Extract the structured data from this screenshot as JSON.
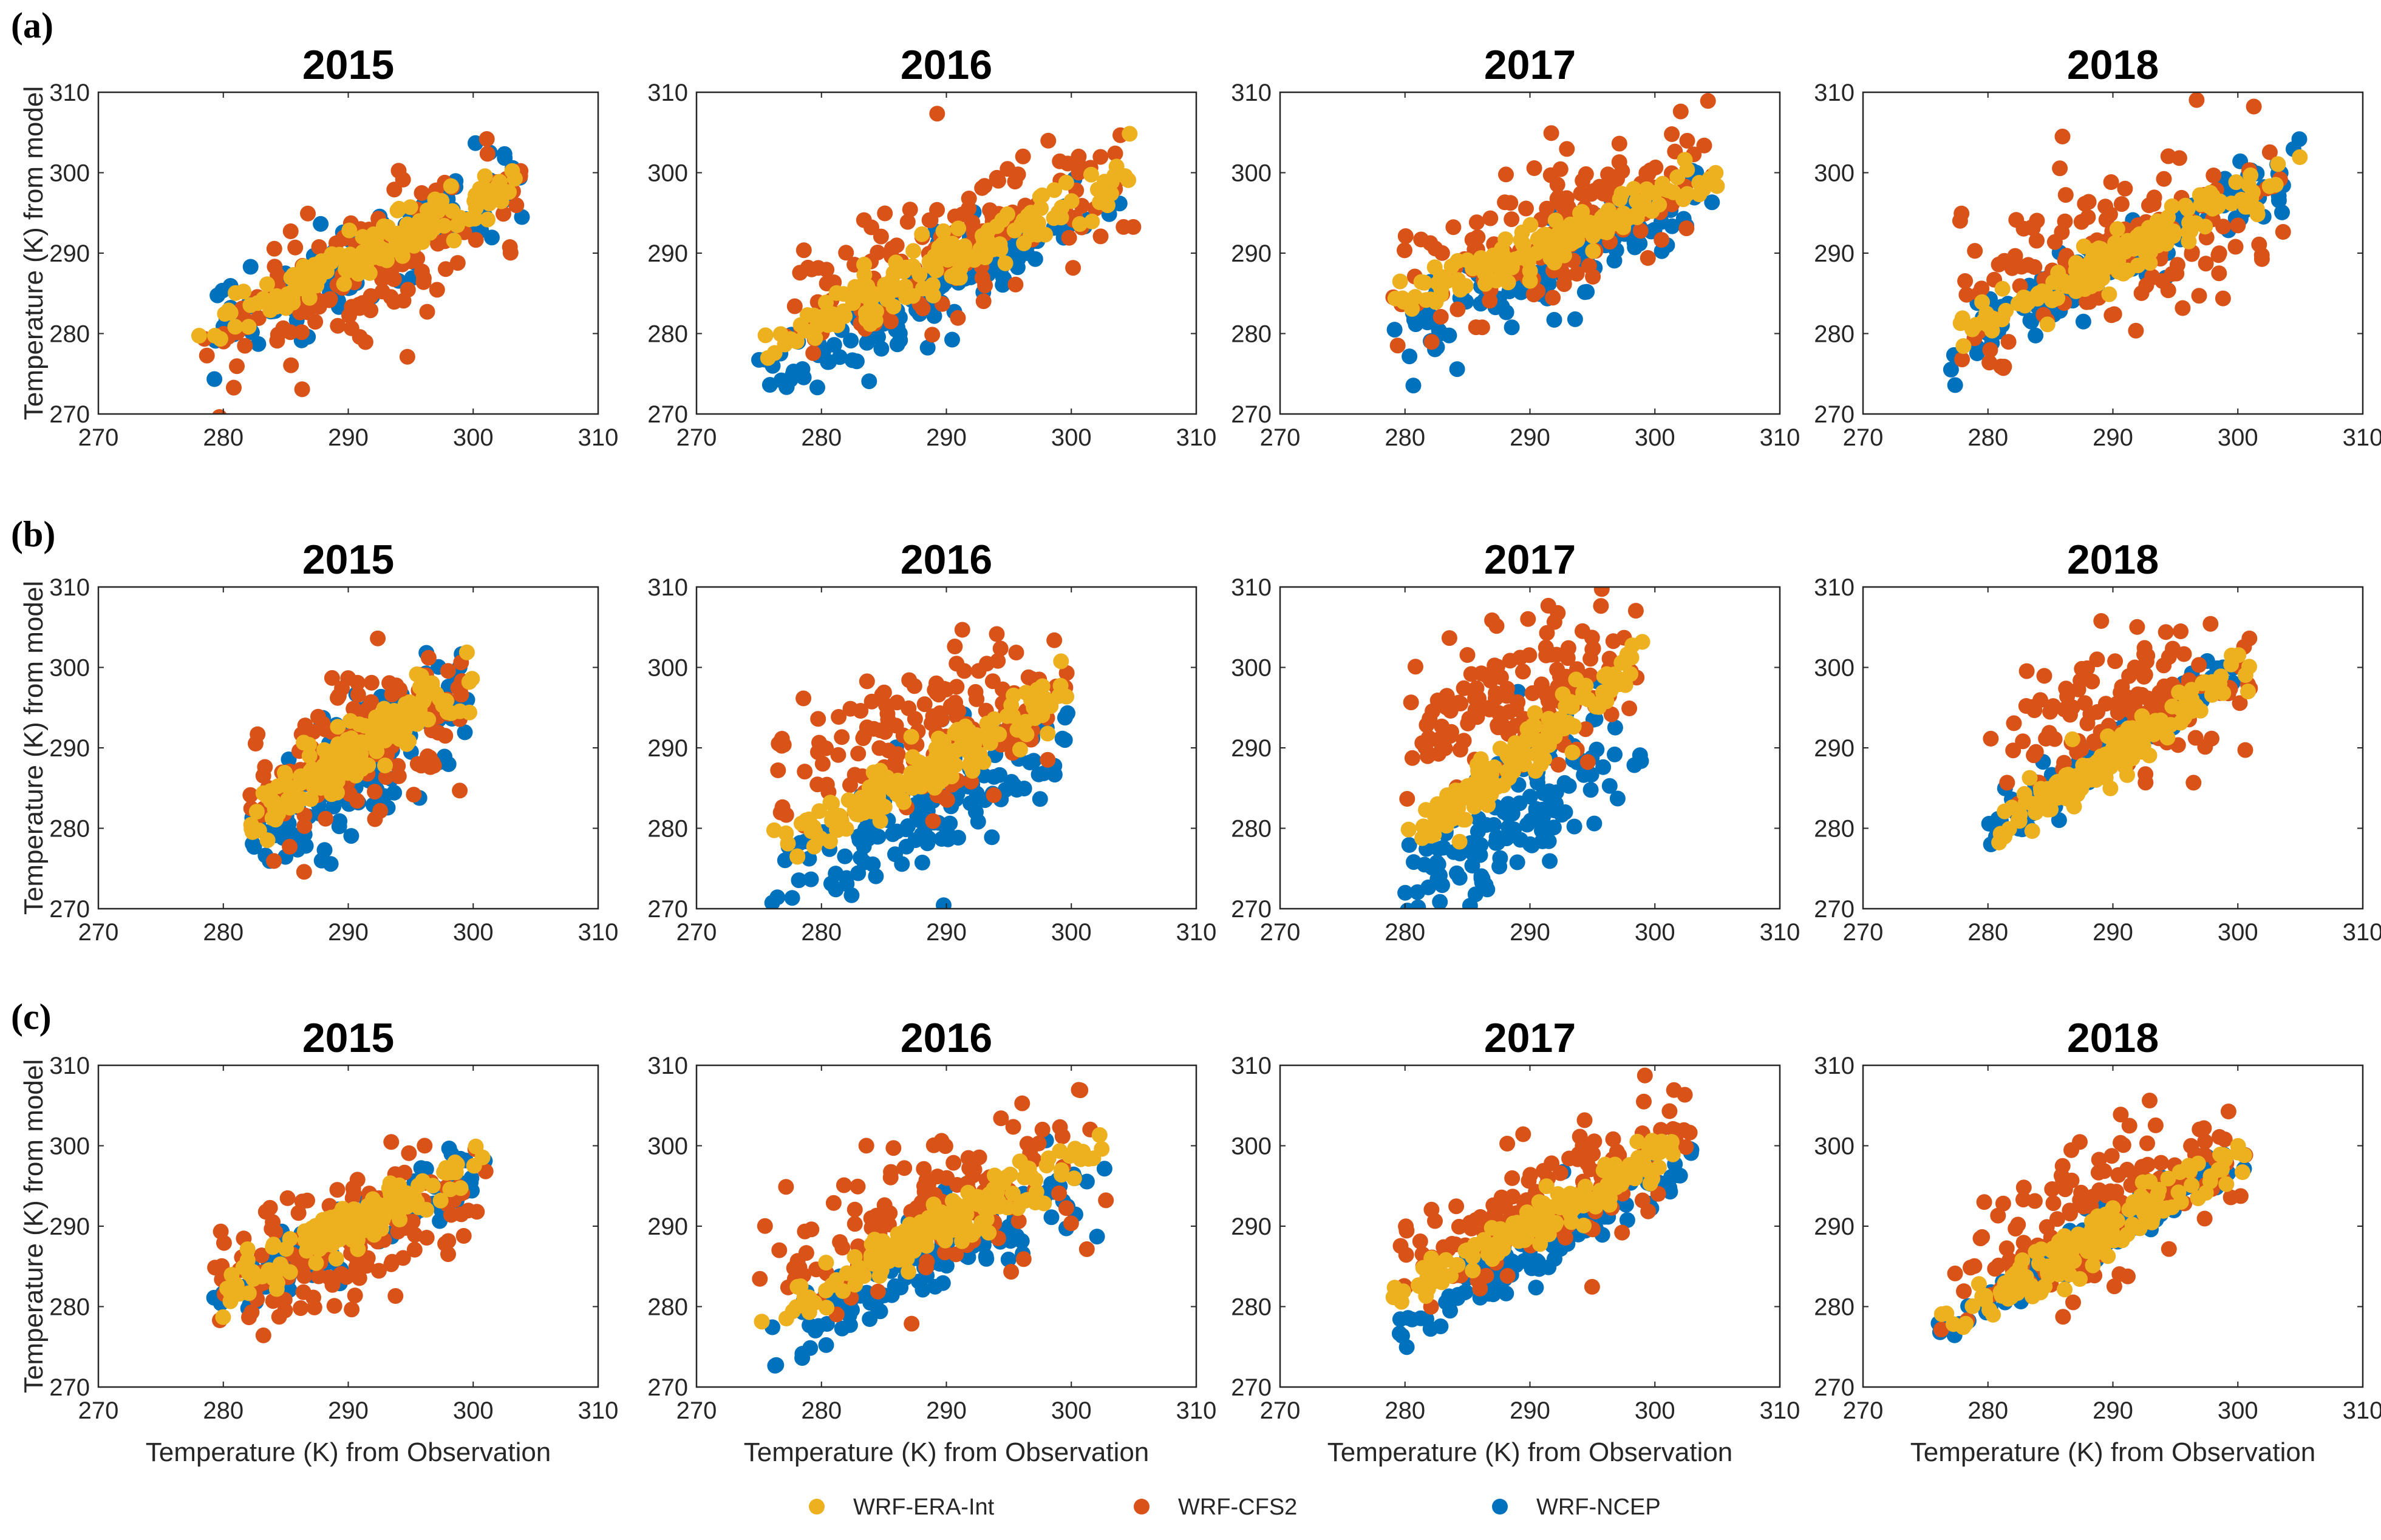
{
  "figure": {
    "row_labels": [
      "(a)",
      "(b)",
      "(c)"
    ],
    "x_axis_label": "Temperature (K) from Observation",
    "y_axis_label": "Temperature (K) from model"
  },
  "legend": [
    {
      "name": "WRF-ERA-Int",
      "color": "#EDB120"
    },
    {
      "name": "WRF-CFS2",
      "color": "#D95319"
    },
    {
      "name": "WRF-NCEP",
      "color": "#0072BD"
    }
  ],
  "chart_data": [
    {
      "type": "scatter",
      "row": "(a)",
      "title": "2015",
      "xlim": [
        270,
        310
      ],
      "ylim": [
        270,
        310
      ],
      "xticks": [
        270,
        280,
        290,
        300,
        310
      ],
      "yticks": [
        270,
        280,
        290,
        300,
        310
      ],
      "obs_range": [
        278,
        304
      ],
      "series": [
        {
          "name": "WRF-ERA-Int",
          "bias": -1,
          "slope": 0.75,
          "spread": 1.5
        },
        {
          "name": "WRF-CFS2",
          "bias": -3,
          "slope": 0.7,
          "spread": 4.5
        },
        {
          "name": "WRF-NCEP",
          "bias": -2,
          "slope": 0.75,
          "spread": 2.5
        }
      ]
    },
    {
      "type": "scatter",
      "row": "(a)",
      "title": "2016",
      "xlim": [
        270,
        310
      ],
      "ylim": [
        270,
        310
      ],
      "xticks": [
        270,
        280,
        290,
        300,
        310
      ],
      "yticks": [
        270,
        280,
        290,
        300,
        310
      ],
      "obs_range": [
        275,
        305
      ],
      "series": [
        {
          "name": "WRF-ERA-Int",
          "bias": -1,
          "slope": 0.75,
          "spread": 1.8
        },
        {
          "name": "WRF-CFS2",
          "bias": 0,
          "slope": 0.6,
          "spread": 4.5
        },
        {
          "name": "WRF-NCEP",
          "bias": -4,
          "slope": 0.8,
          "spread": 2.5
        }
      ]
    },
    {
      "type": "scatter",
      "row": "(a)",
      "title": "2017",
      "xlim": [
        270,
        310
      ],
      "ylim": [
        270,
        310
      ],
      "xticks": [
        270,
        280,
        290,
        300,
        310
      ],
      "yticks": [
        270,
        280,
        290,
        300,
        310
      ],
      "obs_range": [
        279,
        305
      ],
      "series": [
        {
          "name": "WRF-ERA-Int",
          "bias": -0.5,
          "slope": 0.62,
          "spread": 1.2
        },
        {
          "name": "WRF-CFS2",
          "bias": 1,
          "slope": 0.6,
          "spread": 3.8
        },
        {
          "name": "WRF-NCEP",
          "bias": -3,
          "slope": 0.78,
          "spread": 2.5
        }
      ]
    },
    {
      "type": "scatter",
      "row": "(a)",
      "title": "2018",
      "xlim": [
        270,
        310
      ],
      "ylim": [
        270,
        310
      ],
      "xticks": [
        270,
        280,
        290,
        300,
        310
      ],
      "yticks": [
        270,
        280,
        290,
        300,
        310
      ],
      "obs_range": [
        277,
        305
      ],
      "series": [
        {
          "name": "WRF-ERA-Int",
          "bias": -1,
          "slope": 0.75,
          "spread": 1.5
        },
        {
          "name": "WRF-CFS2",
          "bias": 0,
          "slope": 0.5,
          "spread": 5.5
        },
        {
          "name": "WRF-NCEP",
          "bias": -1.5,
          "slope": 0.8,
          "spread": 2
        }
      ]
    },
    {
      "type": "scatter",
      "row": "(b)",
      "title": "2015",
      "xlim": [
        270,
        310
      ],
      "ylim": [
        270,
        310
      ],
      "xticks": [
        270,
        280,
        290,
        300,
        310
      ],
      "yticks": [
        270,
        280,
        290,
        300,
        310
      ],
      "obs_range": [
        282,
        300
      ],
      "series": [
        {
          "name": "WRF-ERA-Int",
          "bias": -1,
          "slope": 1.0,
          "spread": 1.8
        },
        {
          "name": "WRF-CFS2",
          "bias": -1,
          "slope": 0.8,
          "spread": 4.5
        },
        {
          "name": "WRF-NCEP",
          "bias": -3,
          "slope": 1.1,
          "spread": 4
        }
      ]
    },
    {
      "type": "scatter",
      "row": "(b)",
      "title": "2016",
      "xlim": [
        270,
        310
      ],
      "ylim": [
        270,
        310
      ],
      "xticks": [
        270,
        280,
        290,
        300,
        310
      ],
      "yticks": [
        270,
        280,
        290,
        300,
        310
      ],
      "obs_range": [
        276,
        300
      ],
      "series": [
        {
          "name": "WRF-ERA-Int",
          "bias": -1,
          "slope": 0.85,
          "spread": 1.8
        },
        {
          "name": "WRF-CFS2",
          "bias": 4,
          "slope": 0.4,
          "spread": 4.5
        },
        {
          "name": "WRF-NCEP",
          "bias": -6,
          "slope": 0.9,
          "spread": 3.5
        }
      ]
    },
    {
      "type": "scatter",
      "row": "(b)",
      "title": "2017",
      "xlim": [
        270,
        310
      ],
      "ylim": [
        270,
        310
      ],
      "xticks": [
        270,
        280,
        290,
        300,
        310
      ],
      "yticks": [
        270,
        280,
        290,
        300,
        310
      ],
      "obs_range": [
        280,
        299
      ],
      "series": [
        {
          "name": "WRF-ERA-Int",
          "bias": 0,
          "slope": 1.2,
          "spread": 1.5
        },
        {
          "name": "WRF-CFS2",
          "bias": 7,
          "slope": 0.6,
          "spread": 4.5
        },
        {
          "name": "WRF-NCEP",
          "bias": -7,
          "slope": 1.0,
          "spread": 4
        }
      ]
    },
    {
      "type": "scatter",
      "row": "(b)",
      "title": "2018",
      "xlim": [
        270,
        310
      ],
      "ylim": [
        270,
        310
      ],
      "xticks": [
        270,
        280,
        290,
        300,
        310
      ],
      "yticks": [
        270,
        280,
        290,
        300,
        310
      ],
      "obs_range": [
        280,
        301
      ],
      "series": [
        {
          "name": "WRF-ERA-Int",
          "bias": -1,
          "slope": 1.0,
          "spread": 1.5
        },
        {
          "name": "WRF-CFS2",
          "bias": 4,
          "slope": 0.4,
          "spread": 4.5
        },
        {
          "name": "WRF-NCEP",
          "bias": 0,
          "slope": 1.0,
          "spread": 1.5
        }
      ]
    },
    {
      "type": "scatter",
      "row": "(c)",
      "title": "2015",
      "xlim": [
        270,
        310
      ],
      "ylim": [
        270,
        310
      ],
      "xticks": [
        270,
        280,
        290,
        300,
        310
      ],
      "yticks": [
        270,
        280,
        290,
        300,
        310
      ],
      "obs_range": [
        279,
        301
      ],
      "series": [
        {
          "name": "WRF-ERA-Int",
          "bias": 0,
          "slope": 0.8,
          "spread": 1.5
        },
        {
          "name": "WRF-CFS2",
          "bias": -2,
          "slope": 0.55,
          "spread": 4.2
        },
        {
          "name": "WRF-NCEP",
          "bias": -1,
          "slope": 0.75,
          "spread": 2
        }
      ]
    },
    {
      "type": "scatter",
      "row": "(c)",
      "title": "2016",
      "xlim": [
        270,
        310
      ],
      "ylim": [
        270,
        310
      ],
      "xticks": [
        270,
        280,
        290,
        300,
        310
      ],
      "yticks": [
        270,
        280,
        290,
        300,
        310
      ],
      "obs_range": [
        275,
        303
      ],
      "series": [
        {
          "name": "WRF-ERA-Int",
          "bias": 0,
          "slope": 0.85,
          "spread": 1.5
        },
        {
          "name": "WRF-CFS2",
          "bias": 3,
          "slope": 0.6,
          "spread": 4.5
        },
        {
          "name": "WRF-NCEP",
          "bias": -3,
          "slope": 0.8,
          "spread": 2.5
        }
      ]
    },
    {
      "type": "scatter",
      "row": "(c)",
      "title": "2017",
      "xlim": [
        270,
        310
      ],
      "ylim": [
        270,
        310
      ],
      "xticks": [
        270,
        280,
        290,
        300,
        310
      ],
      "yticks": [
        270,
        280,
        290,
        300,
        310
      ],
      "obs_range": [
        279,
        303
      ],
      "series": [
        {
          "name": "WRF-ERA-Int",
          "bias": 0,
          "slope": 0.8,
          "spread": 1.3
        },
        {
          "name": "WRF-CFS2",
          "bias": 2,
          "slope": 0.7,
          "spread": 3.5
        },
        {
          "name": "WRF-NCEP",
          "bias": -3,
          "slope": 0.85,
          "spread": 2.2
        }
      ]
    },
    {
      "type": "scatter",
      "row": "(c)",
      "title": "2018",
      "xlim": [
        270,
        310
      ],
      "ylim": [
        270,
        310
      ],
      "xticks": [
        270,
        280,
        290,
        300,
        310
      ],
      "yticks": [
        270,
        280,
        290,
        300,
        310
      ],
      "obs_range": [
        276,
        301
      ],
      "series": [
        {
          "name": "WRF-ERA-Int",
          "bias": 0,
          "slope": 0.9,
          "spread": 1.5
        },
        {
          "name": "WRF-CFS2",
          "bias": 3,
          "slope": 0.7,
          "spread": 4.5
        },
        {
          "name": "WRF-NCEP",
          "bias": 0,
          "slope": 0.85,
          "spread": 1.5
        }
      ]
    }
  ]
}
